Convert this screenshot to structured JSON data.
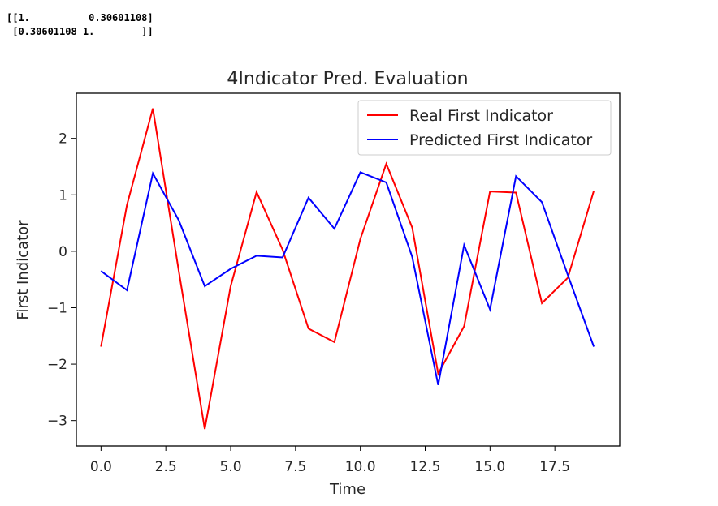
{
  "console_output": [
    "[[1.          0.30601108]",
    " [0.30601108 1.        ]]"
  ],
  "chart_data": {
    "type": "line",
    "title": "4Indicator Pred. Evaluation",
    "xlabel": "Time",
    "ylabel": "First Indicator",
    "xlim": [
      -0.95,
      20
    ],
    "ylim": [
      -3.45,
      2.8
    ],
    "xticks": [
      0,
      2.5,
      5,
      7.5,
      10,
      12.5,
      15,
      17.5
    ],
    "xtick_labels": [
      "0.0",
      "2.5",
      "5.0",
      "7.5",
      "10.0",
      "12.5",
      "15.0",
      "17.5"
    ],
    "yticks": [
      2,
      1,
      0,
      -1,
      -2,
      -3
    ],
    "ytick_labels": [
      "2",
      "1",
      "0",
      "−1",
      "−2",
      "−3"
    ],
    "grid": false,
    "legend_position": "top-right",
    "x": [
      0,
      1,
      2,
      3,
      4,
      5,
      6,
      7,
      8,
      9,
      10,
      11,
      12,
      13,
      14,
      15,
      16,
      17,
      18,
      19
    ],
    "series": [
      {
        "name": "Real First Indicator",
        "color": "#ff0000",
        "values": [
          -1.69,
          0.82,
          2.53,
          -0.35,
          -3.15,
          -0.62,
          1.05,
          0.03,
          -1.37,
          -1.61,
          0.22,
          1.55,
          0.42,
          -2.17,
          -1.33,
          1.06,
          1.04,
          -0.92,
          -0.47,
          1.07
        ]
      },
      {
        "name": "Predicted First Indicator",
        "color": "#0000ff",
        "values": [
          -0.35,
          -0.69,
          1.38,
          0.55,
          -0.62,
          -0.31,
          -0.08,
          -0.11,
          0.95,
          0.4,
          1.4,
          1.22,
          -0.1,
          -2.37,
          0.11,
          -1.03,
          1.33,
          0.87,
          -0.42,
          -1.69
        ]
      }
    ]
  }
}
